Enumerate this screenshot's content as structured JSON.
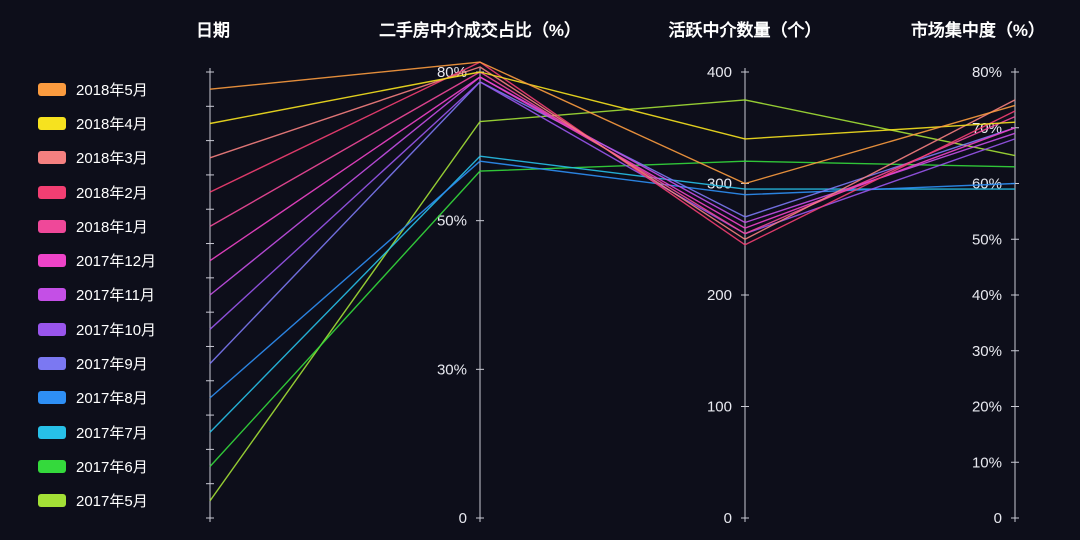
{
  "colors": {
    "background": "#0d0e1a",
    "axis_line": "#c9cad4",
    "tick_label": "#e8e9f0",
    "text": "#ffffff"
  },
  "chart_data": {
    "type": "parallel",
    "axes": [
      {
        "id": "date",
        "title": "日期",
        "categories": [
          "2018年5月",
          "2018年4月",
          "2018年3月",
          "2018年2月",
          "2018年1月",
          "2017年12月",
          "2017年11月",
          "2017年10月",
          "2017年9月",
          "2017年8月",
          "2017年7月",
          "2017年6月",
          "2017年5月"
        ]
      },
      {
        "id": "deal-share",
        "title": "二手房中介成交占比（%）",
        "ticks": [
          {
            "value": 0,
            "label": "0"
          },
          {
            "value": 30,
            "label": "30%"
          },
          {
            "value": 50,
            "label": "50%"
          },
          {
            "value": 80,
            "label": "80%"
          }
        ]
      },
      {
        "id": "active-agents",
        "title": "活跃中介数量（个）",
        "ticks": [
          {
            "value": 0,
            "label": "0"
          },
          {
            "value": 100,
            "label": "100"
          },
          {
            "value": 200,
            "label": "200"
          },
          {
            "value": 300,
            "label": "300"
          },
          {
            "value": 400,
            "label": "400"
          }
        ]
      },
      {
        "id": "concentration",
        "title": "市场集中度（%）",
        "ticks": [
          {
            "value": 0,
            "label": "0"
          },
          {
            "value": 10,
            "label": "10%"
          },
          {
            "value": 20,
            "label": "20%"
          },
          {
            "value": 30,
            "label": "30%"
          },
          {
            "value": 40,
            "label": "40%"
          },
          {
            "value": 50,
            "label": "50%"
          },
          {
            "value": 60,
            "label": "60%"
          },
          {
            "value": 70,
            "label": "70%"
          },
          {
            "value": 80,
            "label": "80%"
          }
        ]
      }
    ],
    "series": [
      {
        "name": "2018年5月",
        "color": "#fb9b3f",
        "values": [
          82,
          300,
          74
        ]
      },
      {
        "name": "2018年4月",
        "color": "#f6e21f",
        "values": [
          80,
          340,
          71
        ]
      },
      {
        "name": "2018年3月",
        "color": "#f58080",
        "values": [
          81,
          250,
          75
        ]
      },
      {
        "name": "2018年2月",
        "color": "#f23e72",
        "values": [
          82,
          245,
          73
        ]
      },
      {
        "name": "2018年1月",
        "color": "#ef4899",
        "values": [
          80,
          255,
          72
        ]
      },
      {
        "name": "2017年12月",
        "color": "#ee43c8",
        "values": [
          79,
          260,
          70
        ]
      },
      {
        "name": "2017年11月",
        "color": "#c44fe6",
        "values": [
          79,
          265,
          69
        ]
      },
      {
        "name": "2017年10月",
        "color": "#9955ec",
        "values": [
          78,
          255,
          68
        ]
      },
      {
        "name": "2017年9月",
        "color": "#7b78f2",
        "values": [
          78,
          270,
          70
        ]
      },
      {
        "name": "2017年8月",
        "color": "#2e8ff5",
        "values": [
          62,
          290,
          60
        ]
      },
      {
        "name": "2017年7月",
        "color": "#27c0e8",
        "values": [
          63,
          295,
          59
        ]
      },
      {
        "name": "2017年6月",
        "color": "#34d93c",
        "values": [
          60,
          320,
          63
        ]
      },
      {
        "name": "2017年5月",
        "color": "#a3e036",
        "values": [
          70,
          375,
          65
        ]
      }
    ]
  }
}
